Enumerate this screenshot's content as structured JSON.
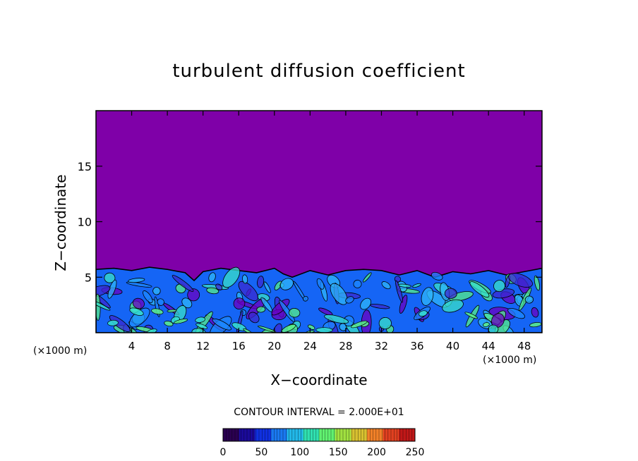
{
  "chart_data": {
    "type": "heatmap",
    "title": "turbulent diffusion coefficient",
    "xlabel": "X−coordinate",
    "ylabel": "Z−coordinate",
    "x_unit_left": "(×1000 m)",
    "x_unit_right": "(×1000 m)",
    "xlim": [
      0,
      50
    ],
    "ylim": [
      0,
      20
    ],
    "xticks": [
      4,
      8,
      12,
      16,
      20,
      24,
      28,
      32,
      36,
      40,
      44,
      48
    ],
    "yticks": [
      5,
      10,
      15
    ],
    "boundary_layer_top": [
      [
        0,
        5.7
      ],
      [
        2,
        5.8
      ],
      [
        4,
        5.6
      ],
      [
        6,
        5.9
      ],
      [
        8,
        5.7
      ],
      [
        10,
        5.4
      ],
      [
        11,
        4.7
      ],
      [
        12,
        5.5
      ],
      [
        14,
        5.8
      ],
      [
        16,
        5.6
      ],
      [
        18,
        5.4
      ],
      [
        20,
        5.8
      ],
      [
        21,
        5.3
      ],
      [
        22,
        5.0
      ],
      [
        24,
        5.6
      ],
      [
        26,
        5.2
      ],
      [
        28,
        5.6
      ],
      [
        30,
        5.7
      ],
      [
        32,
        5.6
      ],
      [
        34,
        5.2
      ],
      [
        36,
        5.6
      ],
      [
        38,
        5.0
      ],
      [
        40,
        5.5
      ],
      [
        42,
        5.3
      ],
      [
        44,
        5.6
      ],
      [
        46,
        5.2
      ],
      [
        48,
        5.5
      ],
      [
        50,
        5.8
      ]
    ],
    "contour_interval": "CONTOUR INTERVAL = 2.000E+01",
    "colorbar": {
      "min": 0,
      "max": 250,
      "tick_labels": [
        "0",
        "50",
        "100",
        "150",
        "200",
        "250"
      ],
      "tick_values": [
        0,
        50,
        100,
        150,
        200,
        250
      ],
      "colors": [
        "#2a0050",
        "#1b0a9a",
        "#1030e0",
        "#1a78f0",
        "#22b8e8",
        "#30e0b0",
        "#60f070",
        "#a0e040",
        "#d8c030",
        "#f08028",
        "#e04020",
        "#c01818"
      ]
    },
    "background_color": "#7f00a8",
    "field_colors": [
      "#1565f5",
      "#1e88ff",
      "#2fb5f8",
      "#38e0c8",
      "#55ef88",
      "#3a2ad0",
      "#6a00c0"
    ]
  }
}
